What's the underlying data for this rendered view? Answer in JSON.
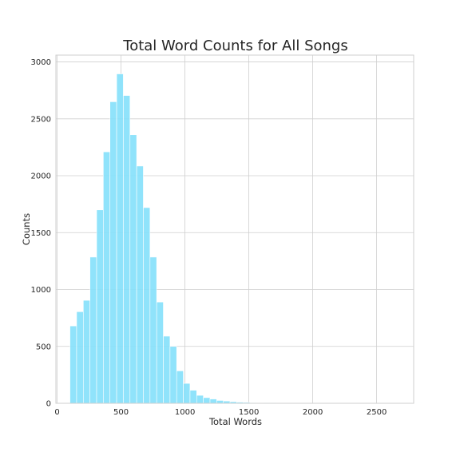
{
  "chart_data": {
    "type": "bar",
    "title": "Total Word Counts for All Songs",
    "xlabel": "Total Words",
    "ylabel": "Counts",
    "xlim": [
      -10,
      2790
    ],
    "ylim": [
      0,
      3060
    ],
    "xticks": [
      0,
      500,
      1000,
      1500,
      2000,
      2500
    ],
    "yticks": [
      0,
      500,
      1000,
      1500,
      2000,
      2500,
      3000
    ],
    "grid": true,
    "bar_color": "#87e1fb",
    "bin_width": 52.2,
    "bin_start": 100,
    "values": [
      680,
      805,
      905,
      1285,
      1700,
      2210,
      2650,
      2895,
      2705,
      2360,
      2085,
      1720,
      1285,
      890,
      590,
      500,
      285,
      175,
      115,
      70,
      50,
      38,
      25,
      20,
      14,
      10,
      8,
      6,
      5,
      4,
      4,
      3,
      3,
      2,
      2,
      2,
      1,
      1,
      1,
      1,
      1,
      1,
      1,
      0,
      0,
      0,
      0,
      0,
      0,
      0,
      0,
      0,
      1
    ]
  }
}
